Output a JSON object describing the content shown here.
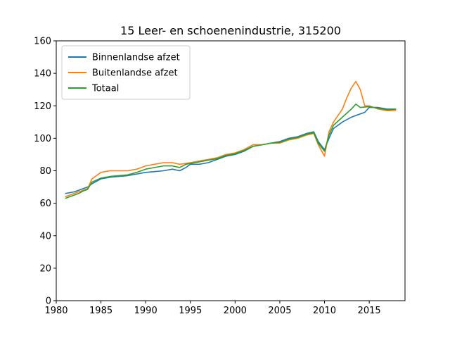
{
  "chart_data": {
    "type": "line",
    "title": "15 Leer- en schoenenindustrie, 315200",
    "xlabel": "",
    "ylabel": "",
    "xlim": [
      1980,
      2019
    ],
    "ylim": [
      0,
      160
    ],
    "x_ticks": [
      1980,
      1985,
      1990,
      1995,
      2000,
      2005,
      2010,
      2015
    ],
    "y_ticks": [
      0,
      20,
      40,
      60,
      80,
      100,
      120,
      140,
      160
    ],
    "grid": false,
    "legend_position": "upper-left",
    "series": [
      {
        "name": "Binnenlandse afzet",
        "color": "#1f77b4",
        "x": [
          1981.0,
          1981.5,
          1982.0,
          1982.5,
          1983.0,
          1983.5,
          1984.0,
          1985.0,
          1986.0,
          1987.0,
          1988.0,
          1989.0,
          1990.0,
          1991.0,
          1992.0,
          1993.0,
          1993.8,
          1994.5,
          1995.0,
          1996.0,
          1997.0,
          1998.0,
          1999.0,
          2000.0,
          2001.0,
          2002.0,
          2003.0,
          2004.0,
          2005.0,
          2006.0,
          2007.0,
          2008.0,
          2008.8,
          2009.3,
          2010.0,
          2010.5,
          2011.0,
          2012.0,
          2013.0,
          2014.0,
          2014.5,
          2015.0,
          2016.0,
          2017.0,
          2018.0
        ],
        "values": [
          66,
          66.5,
          67,
          68,
          69,
          70,
          72,
          75,
          76,
          76.5,
          77,
          78,
          79,
          79.5,
          80,
          81,
          80,
          82,
          84,
          84,
          85,
          87,
          89,
          90,
          92,
          95,
          96,
          97,
          98,
          100,
          101,
          103,
          104,
          98,
          93,
          100,
          106,
          110,
          113,
          115,
          116,
          119,
          119,
          118,
          118
        ]
      },
      {
        "name": "Buitenlandse afzet",
        "color": "#ff7f0e",
        "x": [
          1981.0,
          1981.5,
          1982.0,
          1982.5,
          1983.0,
          1983.5,
          1984.0,
          1985.0,
          1986.0,
          1987.0,
          1988.0,
          1989.0,
          1990.0,
          1991.0,
          1992.0,
          1993.0,
          1993.8,
          1994.5,
          1995.0,
          1996.0,
          1997.0,
          1998.0,
          1999.0,
          2000.0,
          2001.0,
          2002.0,
          2003.0,
          2004.0,
          2005.0,
          2006.0,
          2007.0,
          2008.0,
          2008.8,
          2009.3,
          2009.7,
          2010.0,
          2010.5,
          2011.0,
          2012.0,
          2012.5,
          2013.0,
          2013.5,
          2014.0,
          2014.5,
          2015.0,
          2016.0,
          2017.0,
          2018.0
        ],
        "values": [
          64,
          65,
          66,
          67,
          68,
          69,
          75,
          79,
          80,
          80,
          80,
          81,
          83,
          84,
          85,
          85,
          84,
          84.5,
          85,
          86,
          87,
          88,
          90,
          91,
          93,
          96,
          96,
          97,
          97,
          99,
          100,
          102,
          103,
          96,
          92,
          89,
          104,
          110,
          118,
          125,
          131,
          135,
          130,
          120,
          120,
          118,
          117,
          117
        ]
      },
      {
        "name": "Totaal",
        "color": "#2ca02c",
        "x": [
          1981.0,
          1981.5,
          1982.0,
          1982.5,
          1983.0,
          1983.5,
          1984.0,
          1985.0,
          1986.0,
          1987.0,
          1988.0,
          1989.0,
          1990.0,
          1991.0,
          1992.0,
          1993.0,
          1993.8,
          1994.5,
          1995.0,
          1996.0,
          1997.0,
          1998.0,
          1999.0,
          2000.0,
          2001.0,
          2002.0,
          2003.0,
          2004.0,
          2005.0,
          2006.0,
          2007.0,
          2008.0,
          2008.8,
          2009.3,
          2010.0,
          2010.5,
          2011.0,
          2012.0,
          2013.0,
          2013.5,
          2014.0,
          2015.0,
          2016.0,
          2017.0,
          2018.0
        ],
        "values": [
          63,
          64,
          65,
          66,
          67.5,
          68.5,
          73,
          75.5,
          76.5,
          77,
          77.5,
          79,
          81,
          82,
          83,
          83,
          82,
          84,
          84.5,
          85.5,
          86.5,
          87.5,
          89.5,
          90.5,
          92.5,
          95,
          96,
          97,
          97.5,
          99.5,
          100.5,
          102.5,
          103.5,
          97,
          92,
          102,
          108,
          113,
          118,
          121,
          119,
          119.5,
          118.5,
          117.5,
          118
        ]
      }
    ]
  }
}
